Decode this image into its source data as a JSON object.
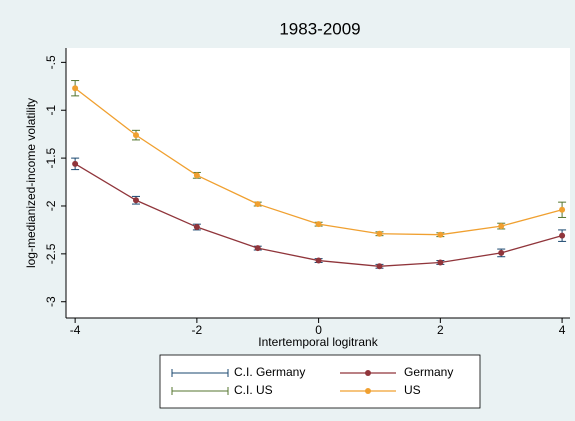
{
  "chart_data": {
    "type": "line",
    "title": "1983-2009",
    "x_label": "Intertemporal logitrank",
    "y_label": "log-medianized-income volatility",
    "x": [
      -4,
      -3,
      -2,
      -1,
      0,
      1,
      2,
      3,
      4
    ],
    "xlim": [
      -4.15,
      4.13
    ],
    "xticks": [
      -4,
      -2,
      0,
      2,
      4
    ],
    "ylim": [
      -3.17,
      -0.35
    ],
    "yticks": [
      {
        "value": -0.5,
        "label": "-.5"
      },
      -1,
      -1.5,
      -2,
      -2.5,
      -3
    ],
    "series": [
      {
        "name": "Germany",
        "color": "#90353b",
        "values": [
          -1.56,
          -1.94,
          -2.22,
          -2.44,
          -2.57,
          -2.63,
          -2.59,
          -2.49,
          -2.31
        ],
        "errors": [
          0.06,
          0.04,
          0.03,
          0.02,
          0.02,
          0.02,
          0.02,
          0.04,
          0.06
        ],
        "ci": {
          "name": "C.I. Germany",
          "color": "#1a476f"
        }
      },
      {
        "name": "US",
        "color": "#f0a030",
        "values": [
          -0.77,
          -1.26,
          -1.68,
          -1.98,
          -2.19,
          -2.29,
          -2.3,
          -2.21,
          -2.04
        ],
        "errors": [
          0.08,
          0.05,
          0.03,
          0.02,
          0.02,
          0.02,
          0.02,
          0.03,
          0.08
        ],
        "ci": {
          "name": "C.I. US",
          "color": "#55752f"
        }
      }
    ]
  }
}
